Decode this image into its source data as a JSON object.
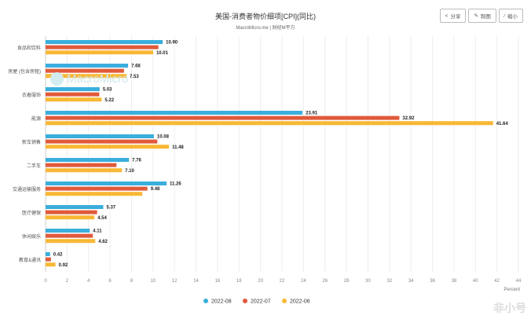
{
  "header": {
    "title": "美国-消费者物价细项[CPI](同比)",
    "subtitle": "MacroMicro.me | 财经M平方",
    "buttons": [
      {
        "label": "分享",
        "icon": "share-icon"
      },
      {
        "label": "制图",
        "icon": "pencil-icon"
      },
      {
        "label": "缩小",
        "icon": "shrink-icon"
      }
    ]
  },
  "watermark": "MacroMicro",
  "watermark2": "非小号",
  "chart_data": {
    "type": "bar",
    "orientation": "horizontal",
    "title": "美国-消费者物价细项[CPI](同比)",
    "xlabel": "Percent",
    "xlim": [
      0,
      44
    ],
    "xticks": [
      0,
      2,
      4,
      6,
      8,
      10,
      12,
      14,
      16,
      18,
      20,
      22,
      24,
      26,
      28,
      30,
      32,
      34,
      36,
      38,
      40,
      42,
      44
    ],
    "grid": true,
    "legend_position": "bottom",
    "categories": [
      "食品和饮料",
      "房屋 (包含房租)",
      "衣着服饰",
      "能源",
      "新车销售",
      "二手车",
      "交通运输服务",
      "医疗健保",
      "休闲娱乐",
      "教育&通讯"
    ],
    "series": [
      {
        "name": "2022-08",
        "color": "#3aaedc",
        "values": [
          10.9,
          7.68,
          5.03,
          23.91,
          10.08,
          7.76,
          11.26,
          5.37,
          4.11,
          0.42
        ],
        "labels": [
          "10.90",
          "7.68",
          "5.03",
          "23.91",
          "10.08",
          "7.76",
          "11.26",
          "5.37",
          "4.11",
          "0.42"
        ]
      },
      {
        "name": "2022-07",
        "color": "#e05a3b",
        "values": [
          10.5,
          7.3,
          5.0,
          32.92,
          10.4,
          6.6,
          9.48,
          4.8,
          4.4,
          0.5
        ],
        "labels": [
          "",
          "",
          "",
          "32.92",
          "",
          "",
          "9.48",
          "",
          "",
          ""
        ]
      },
      {
        "name": "2022-06",
        "color": "#f8b835",
        "values": [
          10.01,
          7.53,
          5.22,
          41.64,
          11.48,
          7.1,
          9.0,
          4.54,
          4.62,
          0.92
        ],
        "labels": [
          "10.01",
          "7.53",
          "5.22",
          "41.64",
          "11.48",
          "7.10",
          "",
          "4.54",
          "4.62",
          "0.92"
        ]
      }
    ]
  }
}
